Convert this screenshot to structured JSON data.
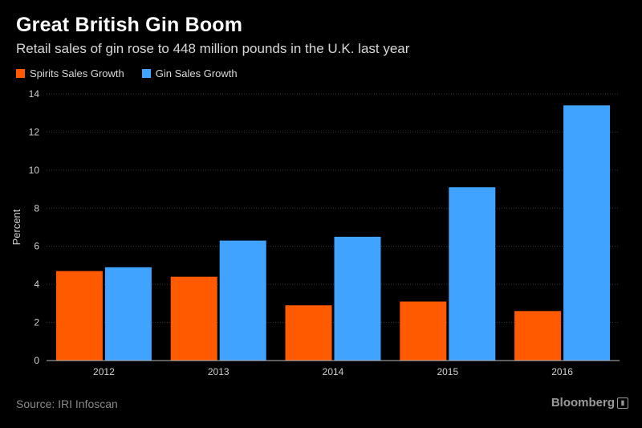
{
  "header": {
    "title": "Great British Gin Boom",
    "subtitle": "Retail sales of gin rose to 448 million pounds in the U.K. last year"
  },
  "legend": {
    "spirits_label": "Spirits Sales Growth",
    "gin_label": "Gin Sales Growth"
  },
  "colors": {
    "spirits": "#ff5a00",
    "gin": "#3fa3ff",
    "grid": "#3a3a3a",
    "axis_text": "#d0d0d0"
  },
  "footer": {
    "source": "Source: IRI Infoscan",
    "brand": "Bloomberg"
  },
  "brand_icon": "bloomberg-logo-icon",
  "chart_data": {
    "type": "bar",
    "title": "Great British Gin Boom",
    "subtitle": "Retail sales of gin rose to 448 million pounds in the U.K. last year",
    "categories": [
      "2012",
      "2013",
      "2014",
      "2015",
      "2016"
    ],
    "series": [
      {
        "name": "Spirits Sales Growth",
        "values": [
          4.7,
          4.4,
          2.9,
          3.1,
          2.6
        ]
      },
      {
        "name": "Gin Sales Growth",
        "values": [
          4.9,
          6.3,
          6.5,
          9.1,
          13.4
        ]
      }
    ],
    "xlabel": "",
    "ylabel": "Percent",
    "ylim": [
      0,
      14
    ],
    "yticks": [
      0,
      2,
      4,
      6,
      8,
      10,
      12,
      14
    ],
    "grid": true,
    "legend_position": "top-left"
  }
}
